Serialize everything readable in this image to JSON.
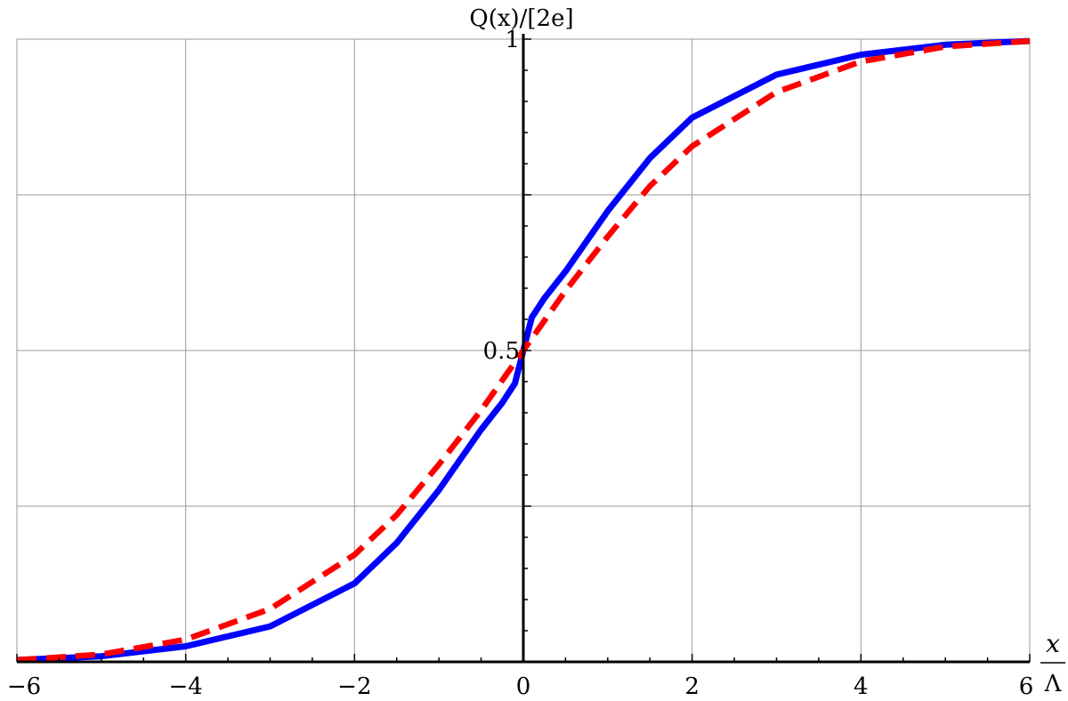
{
  "chart_data": {
    "type": "line",
    "title": "",
    "ylabel": "Q(x)/[2e]",
    "xlabel_numerator": "x",
    "xlabel_denominator": "Λ",
    "xlim": [
      -6,
      6
    ],
    "ylim": [
      0,
      1
    ],
    "grid": true,
    "x_ticks": [
      -6,
      -4,
      -2,
      0,
      2,
      4,
      6
    ],
    "x_tick_labels": [
      "−6",
      "−4",
      "−2",
      "0",
      "2",
      "4",
      "6"
    ],
    "y_ticks": [
      0.5,
      1
    ],
    "y_tick_labels": [
      "0.5",
      "1"
    ],
    "x_grid": [
      -6,
      -4,
      -2,
      0,
      2,
      4,
      6
    ],
    "y_grid": [
      0,
      0.25,
      0.5,
      0.75,
      1
    ],
    "series": [
      {
        "color": "#0000ff",
        "style": "solid",
        "x": [
          -6,
          -5,
          -4,
          -3,
          -2,
          -1.5,
          -1,
          -0.5,
          -0.25,
          -0.1,
          0,
          0.1,
          0.25,
          0.5,
          1,
          1.5,
          2,
          3,
          4,
          5,
          6
        ],
        "y": [
          0.003,
          0.009,
          0.025,
          0.057,
          0.126,
          0.191,
          0.276,
          0.373,
          0.416,
          0.447,
          0.5,
          0.553,
          0.584,
          0.627,
          0.724,
          0.809,
          0.874,
          0.943,
          0.975,
          0.991,
          0.997
        ]
      },
      {
        "color": "#ff0000",
        "style": "dashed",
        "x": [
          -6,
          -5,
          -4,
          -3,
          -2,
          -1.5,
          -1,
          -0.5,
          0,
          0.5,
          1,
          1.5,
          2,
          3,
          4,
          5,
          6
        ],
        "y": [
          0.003,
          0.012,
          0.036,
          0.085,
          0.172,
          0.236,
          0.317,
          0.404,
          0.5,
          0.596,
          0.683,
          0.764,
          0.828,
          0.915,
          0.964,
          0.988,
          0.997
        ]
      }
    ]
  }
}
